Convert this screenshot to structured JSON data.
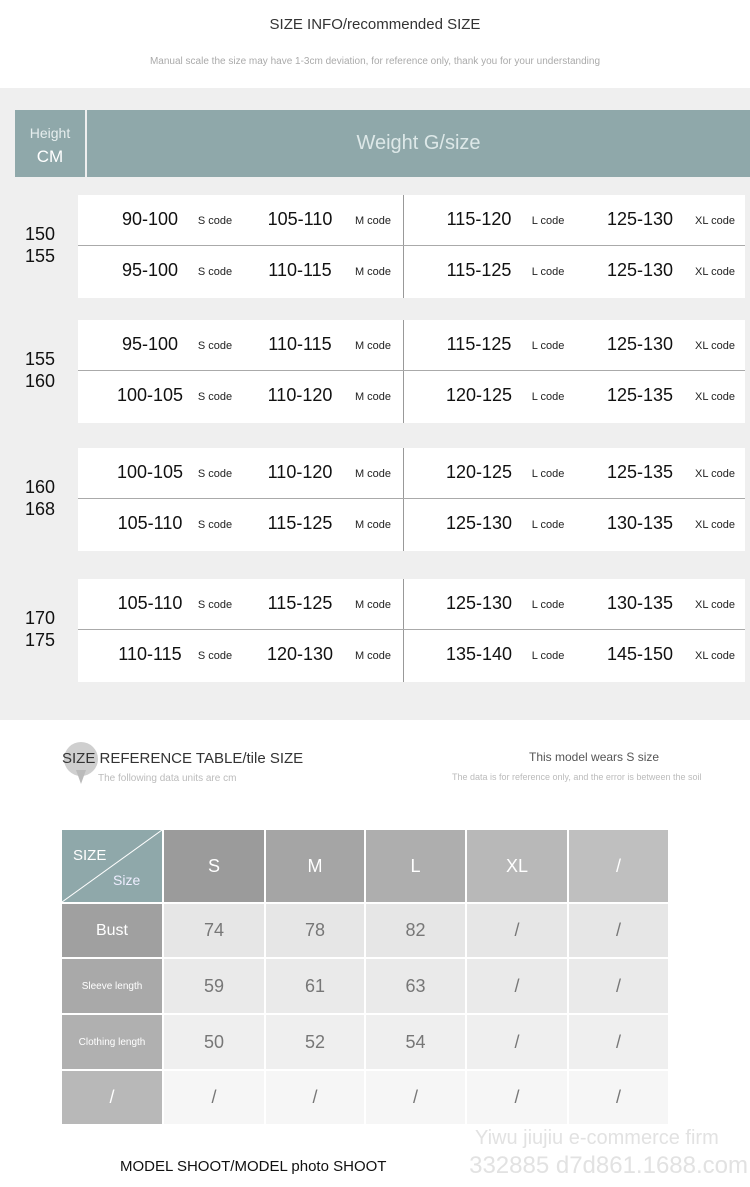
{
  "header": {
    "title": "SIZE INFO/recommended SIZE",
    "note": "Manual scale the size may have 1-3cm deviation, for reference only, thank you for your understanding"
  },
  "chart_head": {
    "height_label": "Height",
    "height_unit": "CM",
    "weight_label": "Weight G/size"
  },
  "groups": [
    {
      "heights": [
        "150",
        "155"
      ],
      "rows": [
        [
          [
            "90-100",
            "S code"
          ],
          [
            "105-110",
            "M code"
          ],
          [
            "115-120",
            "L code"
          ],
          [
            "125-130",
            "XL code"
          ]
        ],
        [
          [
            "95-100",
            "S code"
          ],
          [
            "110-115",
            "M code"
          ],
          [
            "115-125",
            "L code"
          ],
          [
            "125-130",
            "XL code"
          ]
        ]
      ]
    },
    {
      "heights": [
        "155",
        "160"
      ],
      "rows": [
        [
          [
            "95-100",
            "S code"
          ],
          [
            "110-115",
            "M code"
          ],
          [
            "115-125",
            "L code"
          ],
          [
            "125-130",
            "XL code"
          ]
        ],
        [
          [
            "100-105",
            "S code"
          ],
          [
            "110-120",
            "M code"
          ],
          [
            "120-125",
            "L code"
          ],
          [
            "125-135",
            "XL code"
          ]
        ]
      ]
    },
    {
      "heights": [
        "160",
        "168"
      ],
      "rows": [
        [
          [
            "100-105",
            "S code"
          ],
          [
            "110-120",
            "M code"
          ],
          [
            "120-125",
            "L code"
          ],
          [
            "125-135",
            "XL code"
          ]
        ],
        [
          [
            "105-110",
            "S code"
          ],
          [
            "115-125",
            "M code"
          ],
          [
            "125-130",
            "L code"
          ],
          [
            "130-135",
            "XL code"
          ]
        ]
      ]
    },
    {
      "heights": [
        "170",
        "175"
      ],
      "rows": [
        [
          [
            "105-110",
            "S code"
          ],
          [
            "115-125",
            "M code"
          ],
          [
            "125-130",
            "L code"
          ],
          [
            "130-135",
            "XL code"
          ]
        ],
        [
          [
            "110-115",
            "S code"
          ],
          [
            "120-130",
            "M code"
          ],
          [
            "135-140",
            "L code"
          ],
          [
            "145-150",
            "XL code"
          ]
        ]
      ]
    }
  ],
  "ref": {
    "title": "SIZE REFERENCE TABLE/tile SIZE",
    "subtitle": "The following data units are cm",
    "model": "This model wears S size",
    "model_note": "The data is for reference only, and the error is between the soil",
    "corner_top": "SIZE",
    "corner_bottom": "Size",
    "columns": [
      "S",
      "M",
      "L",
      "XL",
      "/"
    ],
    "rows": [
      {
        "label": "Bust",
        "values": [
          "74",
          "78",
          "82",
          "/",
          "/"
        ]
      },
      {
        "label": "Sleeve length",
        "values": [
          "59",
          "61",
          "63",
          "/",
          "/"
        ]
      },
      {
        "label": "Clothing length",
        "values": [
          "50",
          "52",
          "54",
          "/",
          "/"
        ]
      },
      {
        "label": "/",
        "values": [
          "/",
          "/",
          "/",
          "/",
          "/"
        ]
      }
    ]
  },
  "watermark": {
    "line1": "Yiwu jiujiu e-commerce firm",
    "line2": "332885 d7d861.1688.com"
  },
  "footer": "MODEL SHOOT/MODEL photo SHOOT",
  "colors": {
    "teal": "#8fa8aa",
    "panel": "#efefef"
  }
}
